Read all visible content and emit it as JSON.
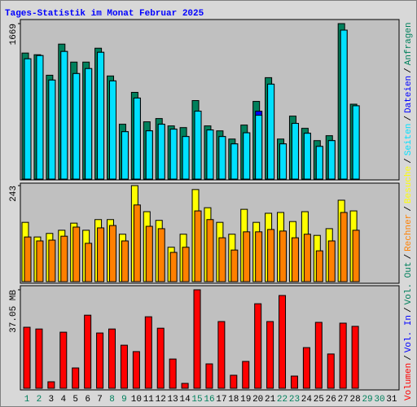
{
  "title": "Tages-Statistik im Monat Februar 2025",
  "separator": "/",
  "chart_data": [
    {
      "type": "bar",
      "categories": [
        "1",
        "2",
        "3",
        "4",
        "5",
        "6",
        "7",
        "8",
        "9",
        "10",
        "11",
        "12",
        "13",
        "14",
        "15",
        "16",
        "17",
        "18",
        "19",
        "20",
        "21",
        "22",
        "23",
        "24",
        "25",
        "26",
        "27",
        "28",
        "29",
        "30",
        "31"
      ],
      "category_colors": [
        "#00805c",
        "#00805c",
        "#000000",
        "#000000",
        "#000000",
        "#000000",
        "#000000",
        "#00805c",
        "#00805c",
        "#000000",
        "#000000",
        "#000000",
        "#000000",
        "#000000",
        "#00805c",
        "#00805c",
        "#000000",
        "#000000",
        "#000000",
        "#000000",
        "#000000",
        "#00805c",
        "#00805c",
        "#000000",
        "#000000",
        "#000000",
        "#000000",
        "#000000",
        "#00805c",
        "#00805c",
        "#000000"
      ],
      "ylim": [
        0,
        1669
      ],
      "yticks": [
        1669
      ],
      "series": [
        {
          "name": "Anfragen",
          "color": "#00805c",
          "values": [
            1353,
            1335,
            1115,
            1449,
            1256,
            1256,
            1405,
            1107,
            589,
            931,
            615,
            650,
            571,
            553,
            843,
            571,
            518,
            430,
            580,
            834,
            1089,
            430,
            676,
            545,
            413,
            466,
            1669,
            804,
            null,
            null,
            null
          ]
        },
        {
          "name": "Dateien",
          "color": "#0000ff",
          "values": [
            1291,
            1326,
            1063,
            1370,
            1133,
            1186,
            1361,
            1054,
            509,
            870,
            518,
            589,
            536,
            457,
            729,
            527,
            457,
            378,
            497,
            729,
            1019,
            378,
            598,
            492,
            351,
            413,
            1599,
            787,
            null,
            null,
            null
          ]
        },
        {
          "name": "Seiten",
          "color": "#00e0ff",
          "values": [
            1291,
            1326,
            1063,
            1370,
            1133,
            1186,
            1361,
            1054,
            509,
            870,
            518,
            589,
            536,
            457,
            729,
            527,
            457,
            378,
            497,
            685,
            1019,
            378,
            598,
            492,
            351,
            413,
            1599,
            787,
            null,
            null,
            null
          ]
        }
      ]
    },
    {
      "type": "bar",
      "ylim": [
        0,
        243
      ],
      "yticks": [
        243
      ],
      "series": [
        {
          "name": "Besuche",
          "color": "#ffff00",
          "values": [
            150,
            113,
            122,
            130,
            148,
            130,
            157,
            157,
            120,
            243,
            177,
            155,
            87,
            120,
            233,
            187,
            150,
            120,
            183,
            150,
            173,
            175,
            152,
            177,
            117,
            134,
            206,
            179,
            null,
            null,
            null
          ]
        },
        {
          "name": "Rechner",
          "color": "#ff8000",
          "values": [
            113,
            103,
            105,
            115,
            138,
            97,
            136,
            142,
            103,
            194,
            140,
            134,
            74,
            87,
            179,
            157,
            111,
            80,
            126,
            126,
            132,
            128,
            111,
            120,
            78,
            103,
            175,
            130,
            null,
            null,
            null
          ]
        }
      ]
    },
    {
      "type": "bar",
      "ylim": [
        0,
        37.05
      ],
      "yticks": [
        {
          "value": 37.05,
          "label": "37.05 MB"
        }
      ],
      "series": [
        {
          "name": "Volumen",
          "color": "#ff0000",
          "values": [
            22.96,
            22.3,
            2.45,
            21.1,
            7.65,
            27.5,
            20.8,
            22.3,
            16.2,
            13.8,
            26.9,
            22.6,
            11.0,
            1.84,
            37.05,
            9.18,
            25.1,
            4.9,
            10.1,
            31.8,
            25.1,
            34.9,
            4.59,
            15.3,
            24.8,
            12.9,
            24.5,
            23.3,
            null,
            null,
            null
          ]
        }
      ],
      "legend_extra": [
        {
          "name": "Vol. In",
          "color": "#0000ff"
        },
        {
          "name": "Vol. Out",
          "color": "#00805c"
        }
      ]
    }
  ]
}
